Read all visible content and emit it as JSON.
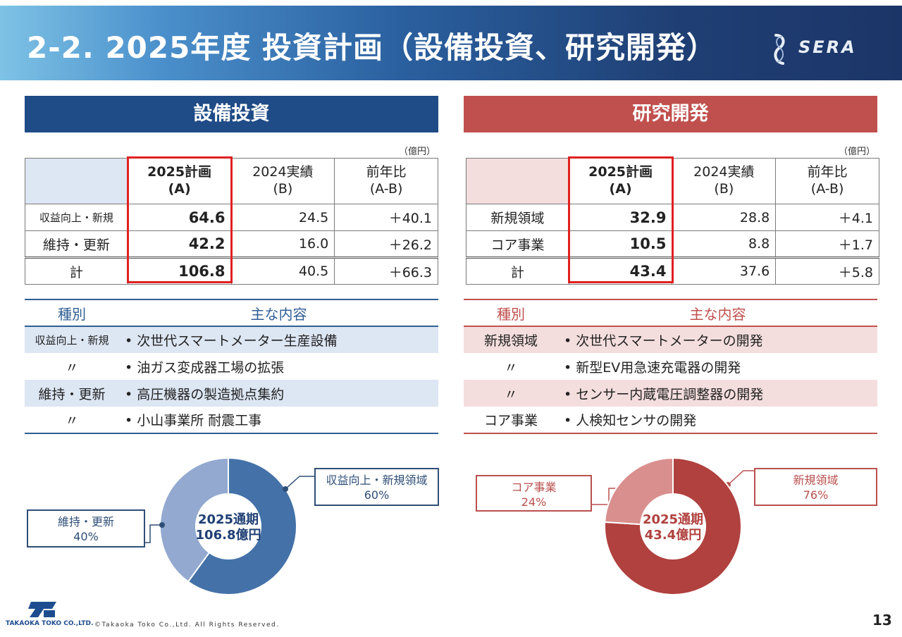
{
  "header": {
    "title": "2-2. 2025年度 投資計画（設備投資、研究開発）",
    "logo_text": "SERA"
  },
  "capex": {
    "section_title": "設備投資",
    "unit": "（億円）",
    "columns": [
      {
        "label": "",
        "sub": ""
      },
      {
        "label": "2025計画",
        "sub": "(A)"
      },
      {
        "label": "2024実績",
        "sub": "(B)"
      },
      {
        "label": "前年比",
        "sub": "(A-B)"
      }
    ],
    "rows": [
      {
        "label": "収益向上・新規",
        "plan": "64.6",
        "actual": "24.5",
        "diff": "＋40.1"
      },
      {
        "label": "維持・更新",
        "plan": "42.2",
        "actual": "16.0",
        "diff": "＋26.2"
      },
      {
        "label": "計",
        "plan": "106.8",
        "actual": "40.5",
        "diff": "＋66.3"
      }
    ],
    "content_header": {
      "type": "種別",
      "content": "主な内容"
    },
    "content_rows": [
      {
        "type": "収益向上・新規",
        "item": "次世代スマートメーター生産設備"
      },
      {
        "type": "〃",
        "item": "油ガス変成器工場の拡張"
      },
      {
        "type": "維持・更新",
        "item": "高圧機器の製造拠点集約"
      },
      {
        "type": "〃",
        "item": "小山事業所 耐震工事"
      }
    ],
    "donut": {
      "center_line1": "2025通期",
      "center_line2": "106.8億円",
      "labels": [
        {
          "name": "収益向上・新規領域",
          "pct": "60%"
        },
        {
          "name": "維持・更新",
          "pct": "40%"
        }
      ]
    }
  },
  "rnd": {
    "section_title": "研究開発",
    "unit": "（億円）",
    "columns": [
      {
        "label": "",
        "sub": ""
      },
      {
        "label": "2025計画",
        "sub": "(A)"
      },
      {
        "label": "2024実績",
        "sub": "(B)"
      },
      {
        "label": "前年比",
        "sub": "(A-B)"
      }
    ],
    "rows": [
      {
        "label": "新規領域",
        "plan": "32.9",
        "actual": "28.8",
        "diff": "＋4.1"
      },
      {
        "label": "コア事業",
        "plan": "10.5",
        "actual": "8.8",
        "diff": "＋1.7"
      },
      {
        "label": "計",
        "plan": "43.4",
        "actual": "37.6",
        "diff": "＋5.8"
      }
    ],
    "content_header": {
      "type": "種別",
      "content": "主な内容"
    },
    "content_rows": [
      {
        "type": "新規領域",
        "item": "次世代スマートメーターの開発"
      },
      {
        "type": "〃",
        "item": "新型EV用急速充電器の開発"
      },
      {
        "type": "〃",
        "item": "センサー内蔵電圧調整器の開発"
      },
      {
        "type": "コア事業",
        "item": "人検知センサの開発"
      }
    ],
    "donut": {
      "center_line1": "2025通期",
      "center_line2": "43.4億円",
      "labels": [
        {
          "name": "新規領域",
          "pct": "76%"
        },
        {
          "name": "コア事業",
          "pct": "24%"
        }
      ]
    }
  },
  "chart_data": [
    {
      "type": "pie",
      "title": "",
      "categories": [
        "収益向上・新規領域",
        "維持・更新"
      ],
      "values": [
        60,
        40
      ],
      "colors": [
        "#4472a8",
        "#93a9d0"
      ]
    },
    {
      "type": "pie",
      "title": "",
      "categories": [
        "新規領域",
        "コア事業"
      ],
      "values": [
        76,
        24
      ],
      "colors": [
        "#b0413e",
        "#d98f8d"
      ]
    }
  ],
  "footer": {
    "company": "TAKAOKA TOKO CO.,LTD.",
    "copyright": "©Takaoka Toko Co.,Ltd. All Rights Reserved.",
    "page": "13"
  }
}
